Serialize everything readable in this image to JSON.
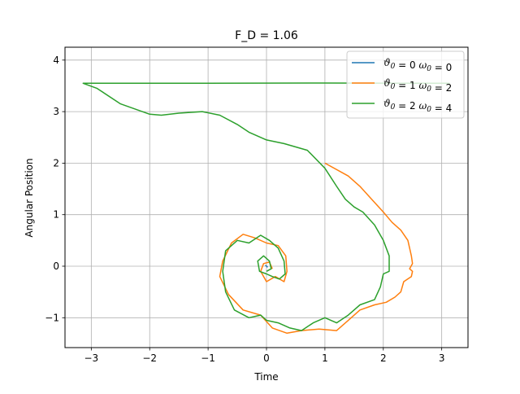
{
  "chart_data": {
    "type": "line",
    "title": "F_D = 1.06",
    "xlabel": "Time",
    "ylabel": "Angular Position",
    "xlim": [
      -3.45,
      3.45
    ],
    "ylim": [
      -1.58,
      4.25
    ],
    "xticks": [
      -3,
      -2,
      -1,
      0,
      1,
      2,
      3
    ],
    "xtick_labels": [
      "−3",
      "−2",
      "−1",
      "0",
      "1",
      "2",
      "3"
    ],
    "yticks": [
      -1,
      0,
      1,
      2,
      3,
      4
    ],
    "ytick_labels": [
      "−1",
      "0",
      "1",
      "2",
      "3",
      "4"
    ],
    "grid": true,
    "legend_loc": "upper right",
    "legend": [
      {
        "theta0": "0",
        "omega0": "0"
      },
      {
        "theta0": "1",
        "omega0": "2"
      },
      {
        "theta0": "2",
        "omega0": "4"
      }
    ],
    "series": [
      {
        "color": "#1f77b4",
        "points": [
          [
            -0.02,
            0.02
          ],
          [
            0.0,
            0.0
          ],
          [
            0.02,
            -0.02
          ]
        ]
      },
      {
        "color": "#ff7f0e",
        "points": [
          [
            1.0,
            2.0
          ],
          [
            1.4,
            1.75
          ],
          [
            1.6,
            1.55
          ],
          [
            1.8,
            1.3
          ],
          [
            2.0,
            1.05
          ],
          [
            2.15,
            0.85
          ],
          [
            2.3,
            0.7
          ],
          [
            2.42,
            0.5
          ],
          [
            2.48,
            0.2
          ],
          [
            2.5,
            0.05
          ],
          [
            2.45,
            -0.05
          ],
          [
            2.5,
            -0.1
          ],
          [
            2.48,
            -0.2
          ],
          [
            2.35,
            -0.3
          ],
          [
            2.3,
            -0.5
          ],
          [
            2.2,
            -0.6
          ],
          [
            2.05,
            -0.7
          ],
          [
            1.85,
            -0.75
          ],
          [
            1.6,
            -0.85
          ],
          [
            1.4,
            -1.05
          ],
          [
            1.2,
            -1.25
          ],
          [
            0.9,
            -1.22
          ],
          [
            0.6,
            -1.25
          ],
          [
            0.35,
            -1.3
          ],
          [
            0.1,
            -1.2
          ],
          [
            -0.1,
            -0.95
          ],
          [
            -0.4,
            -0.85
          ],
          [
            -0.65,
            -0.55
          ],
          [
            -0.8,
            -0.2
          ],
          [
            -0.75,
            0.1
          ],
          [
            -0.6,
            0.45
          ],
          [
            -0.4,
            0.62
          ],
          [
            -0.2,
            0.55
          ],
          [
            0.0,
            0.45
          ],
          [
            0.2,
            0.4
          ],
          [
            0.33,
            0.2
          ],
          [
            0.35,
            -0.1
          ],
          [
            0.3,
            -0.3
          ],
          [
            0.15,
            -0.2
          ],
          [
            0.0,
            -0.3
          ],
          [
            -0.1,
            -0.1
          ],
          [
            -0.05,
            0.05
          ],
          [
            0.05,
            0.08
          ],
          [
            0.1,
            -0.05
          ]
        ]
      },
      {
        "color": "#2ca02c",
        "points": [
          [
            3.14,
            3.55
          ],
          [
            1.0,
            3.555
          ],
          [
            -1.0,
            3.552
          ],
          [
            -3.14,
            3.55
          ],
          [
            -2.9,
            3.45
          ],
          [
            -2.5,
            3.15
          ],
          [
            -2.0,
            2.95
          ],
          [
            -1.8,
            2.93
          ],
          [
            -1.5,
            2.97
          ],
          [
            -1.1,
            3.0
          ],
          [
            -0.8,
            2.93
          ],
          [
            -0.5,
            2.75
          ],
          [
            -0.3,
            2.6
          ],
          [
            0.0,
            2.45
          ],
          [
            0.3,
            2.38
          ],
          [
            0.7,
            2.25
          ],
          [
            1.0,
            1.9
          ],
          [
            1.2,
            1.55
          ],
          [
            1.35,
            1.3
          ],
          [
            1.5,
            1.15
          ],
          [
            1.65,
            1.05
          ],
          [
            1.85,
            0.8
          ],
          [
            2.0,
            0.5
          ],
          [
            2.1,
            0.2
          ],
          [
            2.1,
            0.0
          ],
          [
            2.1,
            -0.1
          ],
          [
            2.0,
            -0.15
          ],
          [
            1.95,
            -0.4
          ],
          [
            1.85,
            -0.65
          ],
          [
            1.6,
            -0.75
          ],
          [
            1.4,
            -0.95
          ],
          [
            1.2,
            -1.1
          ],
          [
            1.0,
            -1.0
          ],
          [
            0.8,
            -1.1
          ],
          [
            0.6,
            -1.25
          ],
          [
            0.4,
            -1.2
          ],
          [
            0.2,
            -1.1
          ],
          [
            0.0,
            -1.05
          ],
          [
            -0.1,
            -0.95
          ],
          [
            -0.3,
            -1.0
          ],
          [
            -0.55,
            -0.85
          ],
          [
            -0.7,
            -0.5
          ],
          [
            -0.75,
            -0.1
          ],
          [
            -0.7,
            0.3
          ],
          [
            -0.5,
            0.5
          ],
          [
            -0.3,
            0.45
          ],
          [
            -0.1,
            0.6
          ],
          [
            0.05,
            0.5
          ],
          [
            0.2,
            0.35
          ],
          [
            0.3,
            0.1
          ],
          [
            0.32,
            -0.15
          ],
          [
            0.22,
            -0.25
          ],
          [
            0.1,
            -0.2
          ],
          [
            0.0,
            -0.15
          ],
          [
            -0.12,
            -0.1
          ],
          [
            -0.15,
            0.1
          ],
          [
            -0.05,
            0.2
          ],
          [
            0.05,
            0.1
          ],
          [
            0.08,
            -0.05
          ],
          [
            0.0,
            -0.1
          ]
        ]
      }
    ]
  }
}
